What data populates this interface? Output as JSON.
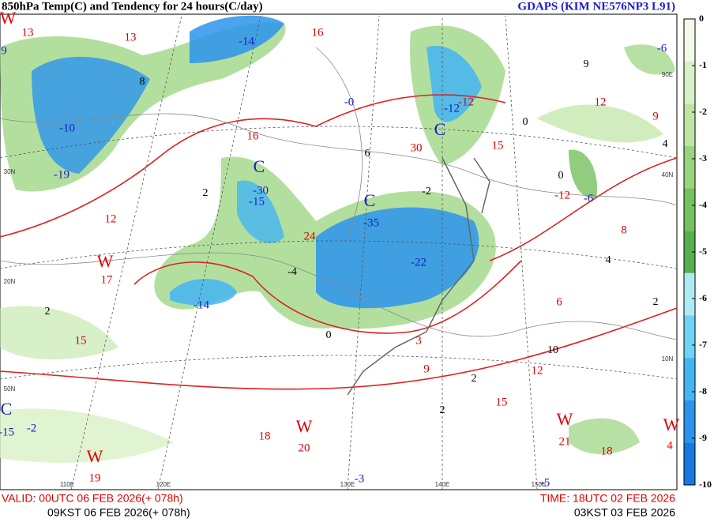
{
  "header": {
    "title": "850hPa Temp(C) and Tendency for 24 hours(C/day)",
    "model": "GDAPS (KIM NE576NP3 L91)"
  },
  "footer": {
    "valid_utc": "VALID: 00UTC 06 FEB 2026(+ 078h)",
    "valid_kst": "09KST 06 FEB 2026(+ 078h)",
    "init_utc": "TIME: 18UTC 02 FEB 2026",
    "init_kst": "03KST 03 FEB 2026"
  },
  "colorbar": {
    "ticks": [
      0,
      -1,
      -2,
      -3,
      -4,
      -5,
      -6,
      -7,
      -8,
      -9,
      -10
    ],
    "colors": [
      "#f2fbe9",
      "#d9f1c6",
      "#bde6a2",
      "#98d47e",
      "#74c15e",
      "#56b04e",
      "#aeeaf4",
      "#6fd3f5",
      "#43b5f3",
      "#2a94ec",
      "#1877e2"
    ]
  },
  "map": {
    "cold_centers": [
      "C",
      "C",
      "C",
      "C"
    ],
    "warm_centers": [
      "W",
      "W",
      "W",
      "W",
      "W",
      "W"
    ],
    "blue_labels": [
      "-14",
      "-10",
      "-19",
      "-30",
      "-15",
      "-35",
      "-22",
      "-14",
      "-12",
      "-6",
      "-6",
      "-0",
      "-2",
      "-15",
      "-3",
      "-5",
      "9"
    ],
    "red_labels": [
      "13",
      "13",
      "16",
      "16",
      "12",
      "17",
      "19",
      "20",
      "18",
      "21",
      "18",
      "4",
      "15",
      "15",
      "12",
      "12",
      "15",
      "9",
      "6",
      "3",
      "9",
      "8",
      "-12",
      "-12",
      "24",
      "30"
    ],
    "black_labels": [
      "9",
      "4",
      "0",
      "2",
      "10",
      "2",
      "8",
      "4",
      "0",
      "2",
      "6",
      "2",
      "-4",
      "-2",
      "2",
      "0"
    ],
    "grid_labels": [
      "30N",
      "40N",
      "20N",
      "10N",
      "50N",
      "90E",
      "110E",
      "120E",
      "130E",
      "140E",
      "150E"
    ]
  }
}
